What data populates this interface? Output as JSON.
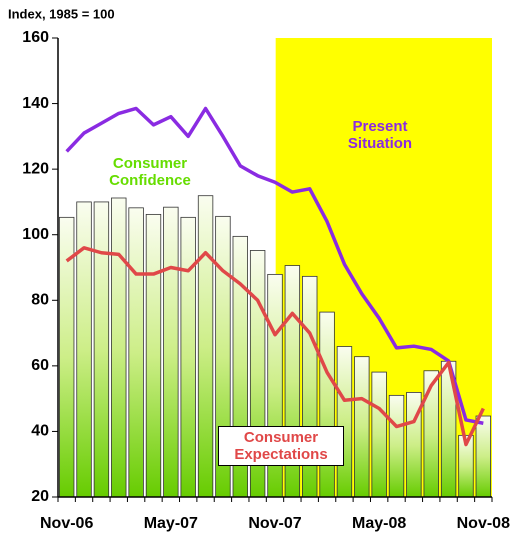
{
  "chart_data": {
    "type": "bar",
    "ylabel": "Index, 1985 = 100",
    "categories": [
      "Nov-06",
      null,
      null,
      null,
      null,
      null,
      "May-07",
      null,
      null,
      null,
      null,
      null,
      "Nov-07",
      null,
      null,
      null,
      null,
      null,
      "May-08",
      null,
      null,
      null,
      null,
      null,
      "Nov-08"
    ],
    "series": [
      {
        "name": "Consumer Confidence",
        "type": "bar",
        "color": "#66cc00",
        "values": [
          105.3,
          110,
          110,
          111.2,
          108.2,
          106.2,
          108.4,
          105.3,
          111.9,
          105.6,
          99.5,
          95.2,
          87.9,
          90.6,
          87.3,
          76.4,
          65.9,
          62.8,
          58.1,
          51.0,
          51.9,
          58.5,
          61.4,
          38.8,
          44.7
        ]
      },
      {
        "name": "Present Situation",
        "type": "line",
        "color": "#8a2be2",
        "values": [
          125.4,
          131,
          134,
          137,
          138.5,
          133.5,
          136,
          130,
          138.5,
          130,
          121,
          118,
          116,
          113,
          114,
          104,
          91,
          82,
          74.5,
          65.5,
          66,
          65,
          61.5,
          43.5,
          42.5
        ]
      },
      {
        "name": "Consumer Expectations",
        "type": "line",
        "color": "#e04848",
        "values": [
          92,
          96,
          94.5,
          94,
          88,
          88,
          90,
          89,
          94.5,
          89,
          85,
          80,
          69.5,
          76,
          70,
          58,
          49.5,
          50,
          47,
          41.5,
          43,
          54,
          61,
          36,
          47
        ]
      }
    ],
    "shade_from_index": 13,
    "shade_color": "#ffff00",
    "ylim": [
      20,
      160
    ],
    "yticks": [
      20,
      40,
      60,
      80,
      100,
      120,
      140,
      160
    ]
  }
}
